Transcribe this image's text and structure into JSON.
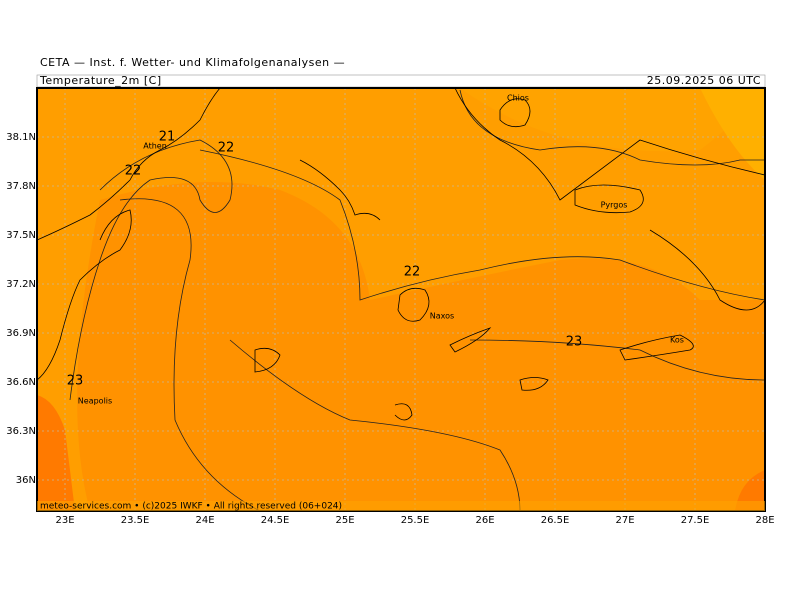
{
  "header": {
    "source": "CETA — Inst. f. Wetter- und Klimafolgenanalysen —",
    "parameter": "Temperature_2m [C]",
    "time": "25.09.2025 06 UTC"
  },
  "lon_labels": [
    "23E",
    "23.5E",
    "24E",
    "24.5E",
    "25E",
    "25.5E",
    "26E",
    "26.5E",
    "27E",
    "27.5E",
    "28E"
  ],
  "lat_labels": [
    "38.1N",
    "37.8N",
    "37.5N",
    "37.2N",
    "36.9N",
    "36.6N",
    "36.3N",
    "36N"
  ],
  "contour_labels": [
    21,
    22,
    22,
    22,
    23,
    23
  ],
  "places": [
    "Chios",
    "Athen",
    "Pyrgos",
    "Naxos",
    "Kos",
    "Neapolis"
  ],
  "footer": "meteo-services.com • (c)2025 IWKF • All rights reserved (06+024)"
}
